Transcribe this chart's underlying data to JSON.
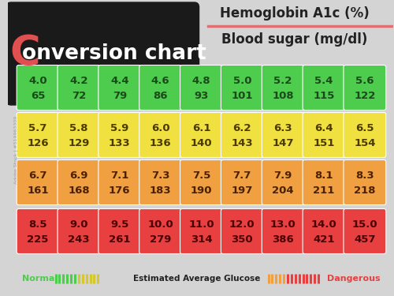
{
  "title_left": "onversion chart",
  "title_C": "C",
  "title_top1": "Hemoglobin A1c (%)",
  "title_top2": "Blood sugar (mg/dl)",
  "background_color": "#d4d4d4",
  "header_box_color": "#1a1a1a",
  "rows": [
    {
      "color": "#4dcc4d",
      "text_color": "#1a4a1a",
      "pairs": [
        [
          "4.0",
          "65"
        ],
        [
          "4.2",
          "72"
        ],
        [
          "4.4",
          "79"
        ],
        [
          "4.6",
          "86"
        ],
        [
          "4.8",
          "93"
        ],
        [
          "5.0",
          "101"
        ],
        [
          "5.2",
          "108"
        ],
        [
          "5.4",
          "115"
        ],
        [
          "5.6",
          "122"
        ]
      ]
    },
    {
      "color": "#f0e040",
      "text_color": "#4a3a00",
      "pairs": [
        [
          "5.7",
          "126"
        ],
        [
          "5.8",
          "129"
        ],
        [
          "5.9",
          "133"
        ],
        [
          "6.0",
          "136"
        ],
        [
          "6.1",
          "140"
        ],
        [
          "6.2",
          "143"
        ],
        [
          "6.3",
          "147"
        ],
        [
          "6.4",
          "151"
        ],
        [
          "6.5",
          "154"
        ]
      ]
    },
    {
      "color": "#f0a040",
      "text_color": "#4a2000",
      "pairs": [
        [
          "6.7",
          "161"
        ],
        [
          "6.9",
          "168"
        ],
        [
          "7.1",
          "176"
        ],
        [
          "7.3",
          "183"
        ],
        [
          "7.5",
          "190"
        ],
        [
          "7.7",
          "197"
        ],
        [
          "7.9",
          "204"
        ],
        [
          "8.1",
          "211"
        ],
        [
          "8.3",
          "218"
        ]
      ]
    },
    {
      "color": "#e84040",
      "text_color": "#4a0000",
      "pairs": [
        [
          "8.5",
          "225"
        ],
        [
          "9.0",
          "243"
        ],
        [
          "9.5",
          "261"
        ],
        [
          "10.0",
          "279"
        ],
        [
          "11.0",
          "314"
        ],
        [
          "12.0",
          "350"
        ],
        [
          "13.0",
          "386"
        ],
        [
          "14.0",
          "421"
        ],
        [
          "15.0",
          "457"
        ]
      ]
    }
  ],
  "legend_normal_color": "#4dcc4d",
  "legend_yellow_color": "#d4c830",
  "legend_orange_color": "#f0a040",
  "legend_danger_color": "#e84040",
  "legend_normal_text": "Normal",
  "legend_center_text": "Estimated Average Glucose",
  "legend_danger_text": "Dangerous",
  "divider_color": "#e07070",
  "C_color": "#e05050",
  "watermark_text": "Adobe Stock | #519963309"
}
